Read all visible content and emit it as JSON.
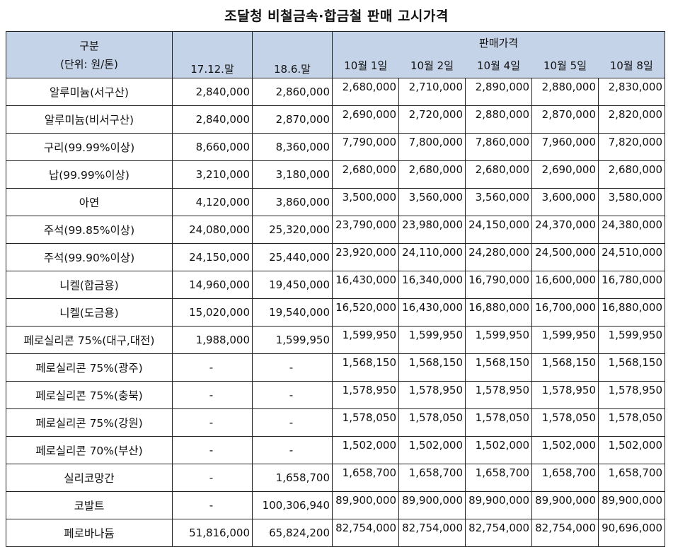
{
  "title": "조달청 비철금속·합금철 판매 고시가격",
  "header": {
    "gubun": "구분",
    "unit": "(단위: 원/톤)",
    "sale_price": "판매가격",
    "periods": [
      "17.12.말",
      "18.6.말"
    ],
    "dates": [
      "10월 1일",
      "10월 2일",
      "10월 4일",
      "10월 5일",
      "10월 8일"
    ]
  },
  "rows": [
    {
      "name": "알루미늄(서구산)",
      "p1": "2,840,000",
      "p2": "2,860,000",
      "d": [
        "2,680,000",
        "2,710,000",
        "2,890,000",
        "2,880,000",
        "2,830,000"
      ]
    },
    {
      "name": "알루미늄(비서구산)",
      "p1": "2,840,000",
      "p2": "2,870,000",
      "d": [
        "2,690,000",
        "2,720,000",
        "2,880,000",
        "2,870,000",
        "2,820,000"
      ]
    },
    {
      "name": "구리(99.99%이상)",
      "p1": "8,660,000",
      "p2": "8,360,000",
      "d": [
        "7,790,000",
        "7,800,000",
        "7,860,000",
        "7,960,000",
        "7,820,000"
      ]
    },
    {
      "name": "납(99.99%이상)",
      "p1": "3,210,000",
      "p2": "3,180,000",
      "d": [
        "2,680,000",
        "2,680,000",
        "2,680,000",
        "2,690,000",
        "2,680,000"
      ]
    },
    {
      "name": "아연",
      "p1": "4,120,000",
      "p2": "3,860,000",
      "d": [
        "3,500,000",
        "3,560,000",
        "3,560,000",
        "3,600,000",
        "3,580,000"
      ]
    },
    {
      "name": "주석(99.85%이상)",
      "p1": "24,080,000",
      "p2": "25,320,000",
      "d": [
        "23,790,000",
        "23,980,000",
        "24,150,000",
        "24,370,000",
        "24,380,000"
      ]
    },
    {
      "name": "주석(99.90%이상)",
      "p1": "24,150,000",
      "p2": "25,440,000",
      "d": [
        "23,920,000",
        "24,110,000",
        "24,280,000",
        "24,500,000",
        "24,510,000"
      ]
    },
    {
      "name": "니켈(합금용)",
      "p1": "14,960,000",
      "p2": "19,450,000",
      "d": [
        "16,430,000",
        "16,340,000",
        "16,790,000",
        "16,600,000",
        "16,780,000"
      ]
    },
    {
      "name": "니켈(도금용)",
      "p1": "15,020,000",
      "p2": "19,540,000",
      "d": [
        "16,520,000",
        "16,430,000",
        "16,880,000",
        "16,700,000",
        "16,880,000"
      ]
    },
    {
      "name": "페로실리콘 75%(대구,대전)",
      "p1": "1,988,000",
      "p2": "1,599,950",
      "d": [
        "1,599,950",
        "1,599,950",
        "1,599,950",
        "1,599,950",
        "1,599,950"
      ]
    },
    {
      "name": "페로실리콘 75%(광주)",
      "p1": "-",
      "p2": "-",
      "d": [
        "1,568,150",
        "1,568,150",
        "1,568,150",
        "1,568,150",
        "1,568,150"
      ]
    },
    {
      "name": "페로실리콘 75%(충북)",
      "p1": "-",
      "p2": "-",
      "d": [
        "1,578,950",
        "1,578,950",
        "1,578,950",
        "1,578,950",
        "1,578,950"
      ]
    },
    {
      "name": "페로실리콘 75%(강원)",
      "p1": "-",
      "p2": "-",
      "d": [
        "1,578,050",
        "1,578,050",
        "1,578,050",
        "1,578,050",
        "1,578,050"
      ]
    },
    {
      "name": "페로실리콘 70%(부산)",
      "p1": "-",
      "p2": "-",
      "d": [
        "1,502,000",
        "1,502,000",
        "1,502,000",
        "1,502,000",
        "1,502,000"
      ]
    },
    {
      "name": "실리코망간",
      "p1": "-",
      "p2": "1,658,700",
      "d": [
        "1,658,700",
        "1,658,700",
        "1,658,700",
        "1,658,700",
        "1,658,700"
      ]
    },
    {
      "name": "코발트",
      "p1": "-",
      "p2": "100,306,940",
      "d": [
        "89,900,000",
        "89,900,000",
        "89,900,000",
        "89,900,000",
        "89,900,000"
      ]
    },
    {
      "name": "페로바나듐",
      "p1": "51,816,000",
      "p2": "65,824,200",
      "d": [
        "82,754,000",
        "82,754,000",
        "82,754,000",
        "82,754,000",
        "90,696,000"
      ]
    }
  ]
}
